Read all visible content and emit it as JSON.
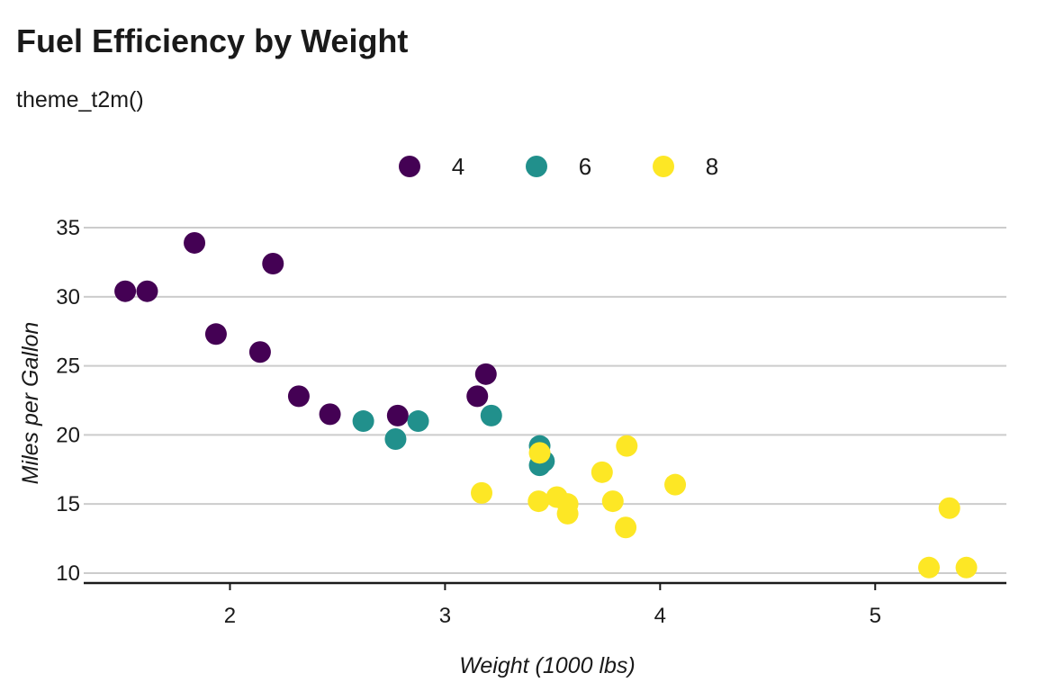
{
  "chart_data": {
    "type": "scatter",
    "title": "Fuel Efficiency by Weight",
    "subtitle": "theme_t2m()",
    "xlabel": "Weight (1000 lbs)",
    "ylabel": "Miles per Gallon",
    "xlim": [
      1.32,
      5.61
    ],
    "ylim": [
      9.28,
      35.85
    ],
    "xticks": [
      2,
      3,
      4,
      5
    ],
    "yticks": [
      10,
      15,
      20,
      25,
      30,
      35
    ],
    "grid": "horizontal major",
    "legend_position": "top",
    "legend": [
      {
        "label": "4",
        "color": "#440154"
      },
      {
        "label": "6",
        "color": "#21908C"
      },
      {
        "label": "8",
        "color": "#FDE725"
      }
    ],
    "points": [
      {
        "x": 2.62,
        "y": 21.0,
        "group": "6"
      },
      {
        "x": 2.875,
        "y": 21.0,
        "group": "6"
      },
      {
        "x": 2.32,
        "y": 22.8,
        "group": "4"
      },
      {
        "x": 3.215,
        "y": 21.4,
        "group": "6"
      },
      {
        "x": 3.44,
        "y": 18.7,
        "group": "8"
      },
      {
        "x": 3.46,
        "y": 18.1,
        "group": "6"
      },
      {
        "x": 3.57,
        "y": 14.3,
        "group": "8"
      },
      {
        "x": 3.19,
        "y": 24.4,
        "group": "4"
      },
      {
        "x": 3.15,
        "y": 22.8,
        "group": "4"
      },
      {
        "x": 3.44,
        "y": 19.2,
        "group": "6"
      },
      {
        "x": 3.44,
        "y": 17.8,
        "group": "6"
      },
      {
        "x": 4.07,
        "y": 16.4,
        "group": "8"
      },
      {
        "x": 3.73,
        "y": 17.3,
        "group": "8"
      },
      {
        "x": 3.78,
        "y": 15.2,
        "group": "8"
      },
      {
        "x": 5.25,
        "y": 10.4,
        "group": "8"
      },
      {
        "x": 5.424,
        "y": 10.4,
        "group": "8"
      },
      {
        "x": 5.345,
        "y": 14.7,
        "group": "8"
      },
      {
        "x": 2.2,
        "y": 32.4,
        "group": "4"
      },
      {
        "x": 1.615,
        "y": 30.4,
        "group": "4"
      },
      {
        "x": 1.835,
        "y": 33.9,
        "group": "4"
      },
      {
        "x": 2.465,
        "y": 21.5,
        "group": "4"
      },
      {
        "x": 3.52,
        "y": 15.5,
        "group": "8"
      },
      {
        "x": 3.435,
        "y": 15.2,
        "group": "8"
      },
      {
        "x": 3.84,
        "y": 13.3,
        "group": "8"
      },
      {
        "x": 3.845,
        "y": 19.2,
        "group": "8"
      },
      {
        "x": 1.935,
        "y": 27.3,
        "group": "4"
      },
      {
        "x": 2.14,
        "y": 26.0,
        "group": "4"
      },
      {
        "x": 1.513,
        "y": 30.4,
        "group": "4"
      },
      {
        "x": 3.17,
        "y": 15.8,
        "group": "8"
      },
      {
        "x": 2.77,
        "y": 19.7,
        "group": "6"
      },
      {
        "x": 3.57,
        "y": 15.0,
        "group": "8"
      },
      {
        "x": 2.78,
        "y": 21.4,
        "group": "4"
      }
    ]
  }
}
